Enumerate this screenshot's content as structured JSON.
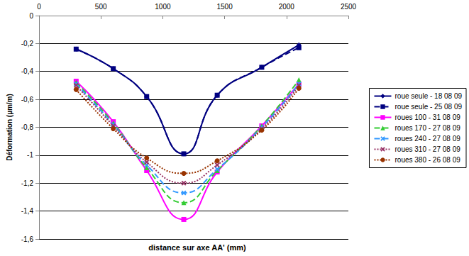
{
  "chart_data": {
    "type": "line",
    "xlabel": "distance sur axe AA' (mm)",
    "ylabel": "Déformation (µm/m)",
    "x": [
      300,
      600,
      870,
      1170,
      1440,
      1800,
      2100
    ],
    "xlim": [
      0,
      2500
    ],
    "xticks": [
      0,
      500,
      1000,
      1500,
      2000,
      2500
    ],
    "ylim": [
      -1.6,
      0
    ],
    "yticks": [
      {
        "value": -1.6,
        "label": "-1,6"
      },
      {
        "value": -1.4,
        "label": "-1,4"
      },
      {
        "value": -1.2,
        "label": "-1,2"
      },
      {
        "value": -1,
        "label": "-1"
      },
      {
        "value": -0.8,
        "label": "-0,8"
      },
      {
        "value": -0.6,
        "label": "-0,6"
      },
      {
        "value": -0.4,
        "label": "-0,4"
      },
      {
        "value": -0.2,
        "label": "-0,2"
      },
      {
        "value": 0,
        "label": "0"
      }
    ],
    "grid": true,
    "legend": "right",
    "series": [
      {
        "name": "roue seule - 18 08 09",
        "color": "#000080",
        "marker": "diamond",
        "line_style": "solid",
        "values": [
          -0.24,
          -0.38,
          -0.58,
          -0.99,
          -0.57,
          -0.37,
          -0.21
        ]
      },
      {
        "name": "roue seule - 25 08 09",
        "color": "#000080",
        "marker": "square",
        "line_style": "dashed",
        "values": [
          -0.24,
          -0.38,
          -0.58,
          -0.99,
          -0.57,
          -0.37,
          -0.23
        ]
      },
      {
        "name": "roues 100 - 31 08 09",
        "color": "#ff00ff",
        "marker": "square",
        "line_style": "solid",
        "values": [
          -0.47,
          -0.76,
          -1.11,
          -1.46,
          -1.12,
          -0.79,
          -0.49
        ]
      },
      {
        "name": "roues 170 - 27 08 09",
        "color": "#33cc33",
        "marker": "triangle",
        "line_style": "dashed",
        "values": [
          -0.48,
          -0.77,
          -1.09,
          -1.34,
          -1.11,
          -0.79,
          -0.46
        ]
      },
      {
        "name": "roues 240 - 27 08 09",
        "color": "#3399ff",
        "marker": "x",
        "line_style": "dashed",
        "values": [
          -0.49,
          -0.78,
          -1.07,
          -1.27,
          -1.1,
          -0.8,
          -0.49
        ]
      },
      {
        "name": "roues 310 - 27 08 09",
        "color": "#993366",
        "marker": "x",
        "line_style": "dotted",
        "values": [
          -0.5,
          -0.79,
          -1.05,
          -1.2,
          -1.07,
          -0.81,
          -0.5
        ]
      },
      {
        "name": "roues 380 - 26 08 09",
        "color": "#993300",
        "marker": "circle",
        "line_style": "dotted",
        "values": [
          -0.53,
          -0.81,
          -1.02,
          -1.13,
          -1.04,
          -0.82,
          -0.52
        ]
      }
    ]
  }
}
